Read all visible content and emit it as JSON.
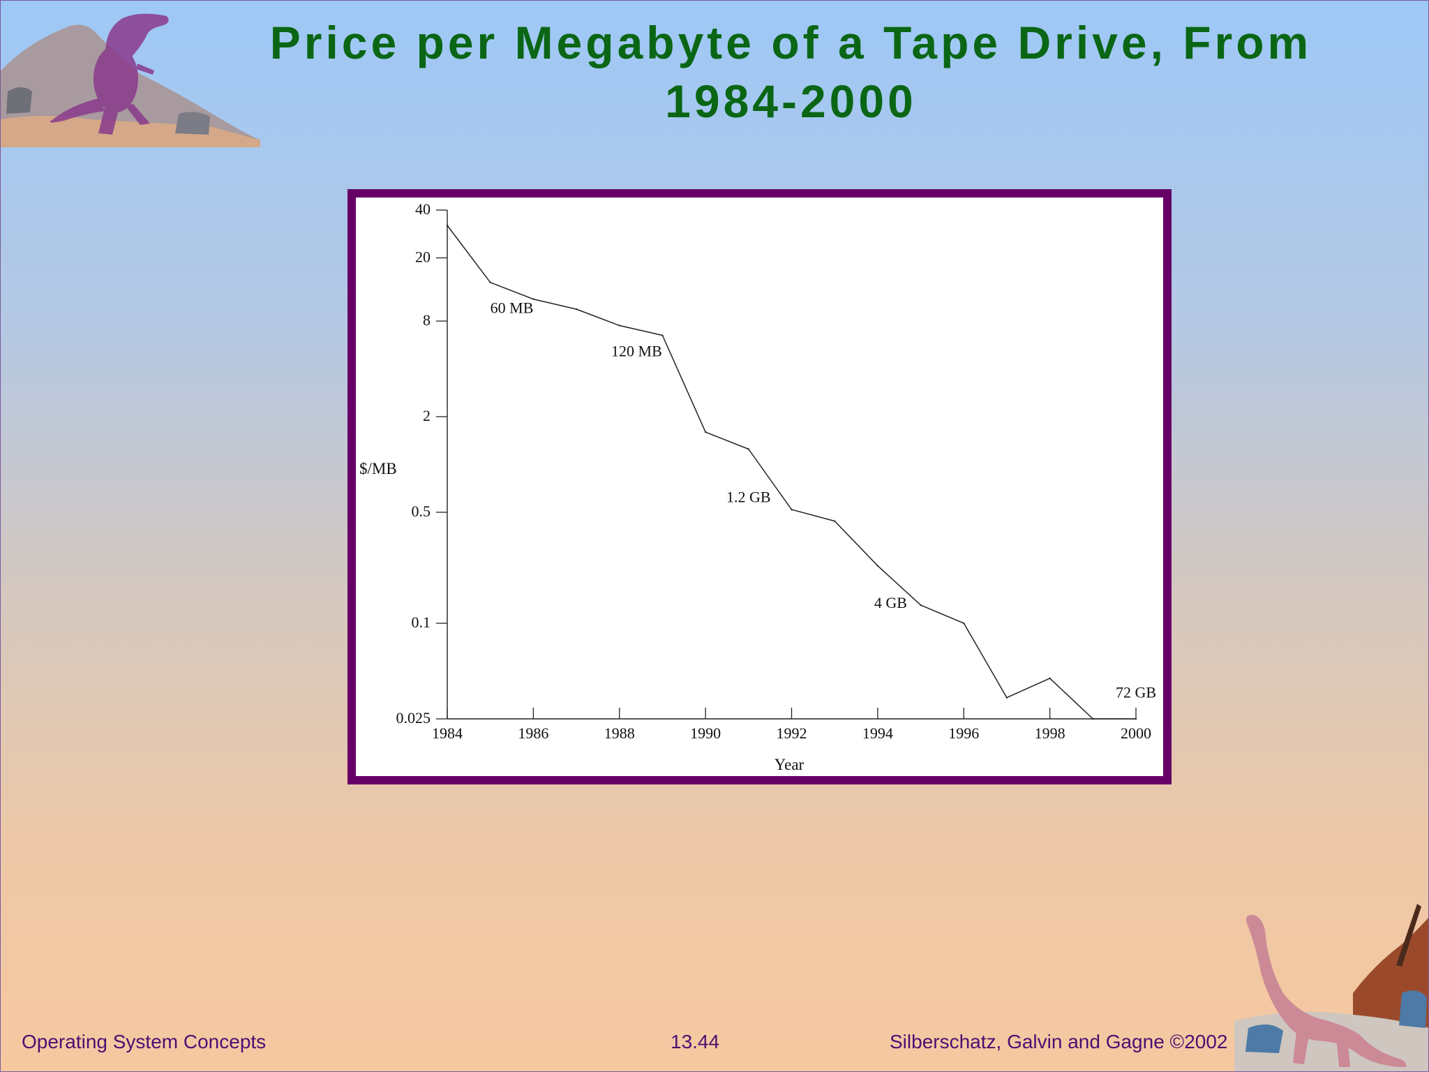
{
  "slide": {
    "title": "Price per Megabyte of a Tape Drive, From 1984-2000",
    "footer_left": "Operating System Concepts",
    "footer_center": "13.44",
    "footer_right": "Silberschatz, Galvin and  Gagne ©2002",
    "decorations": [
      "t-rex-illustration",
      "brontosaurus-illustration"
    ]
  },
  "colors": {
    "title": "#0a6614",
    "frame": "#660066",
    "footer": "#4b0f73",
    "line": "#222222"
  },
  "chart_data": {
    "type": "line",
    "xlabel": "Year",
    "ylabel": "$/MB",
    "x_scale": "linear",
    "y_scale": "log",
    "xlim": [
      1984,
      2000
    ],
    "ylim": [
      0.025,
      40
    ],
    "x_ticks": [
      1984,
      1986,
      1988,
      1990,
      1992,
      1994,
      1996,
      1998,
      2000
    ],
    "y_ticks": [
      40,
      20,
      8,
      2,
      0.5,
      0.1,
      0.025
    ],
    "grid": false,
    "series": [
      {
        "x": [
          1984,
          1985,
          1986,
          1987,
          1988,
          1989,
          1990,
          1991,
          1992,
          1993,
          1994,
          1995,
          1996,
          1997,
          1998,
          1999,
          2000
        ],
        "values": [
          32,
          14,
          11,
          9.5,
          7.5,
          6.5,
          1.6,
          1.25,
          0.52,
          0.44,
          0.23,
          0.13,
          0.1,
          0.034,
          0.045,
          0.025,
          0.025
        ]
      }
    ],
    "annotations": [
      {
        "text": "60 MB",
        "x": 1985.5,
        "y": 9.0
      },
      {
        "text": "120 MB",
        "x": 1988.4,
        "y": 4.8
      },
      {
        "text": "1.2 GB",
        "x": 1991.0,
        "y": 0.58
      },
      {
        "text": "4 GB",
        "x": 1994.3,
        "y": 0.125
      },
      {
        "text": "72 GB",
        "x": 2000.0,
        "y": 0.034
      }
    ]
  }
}
